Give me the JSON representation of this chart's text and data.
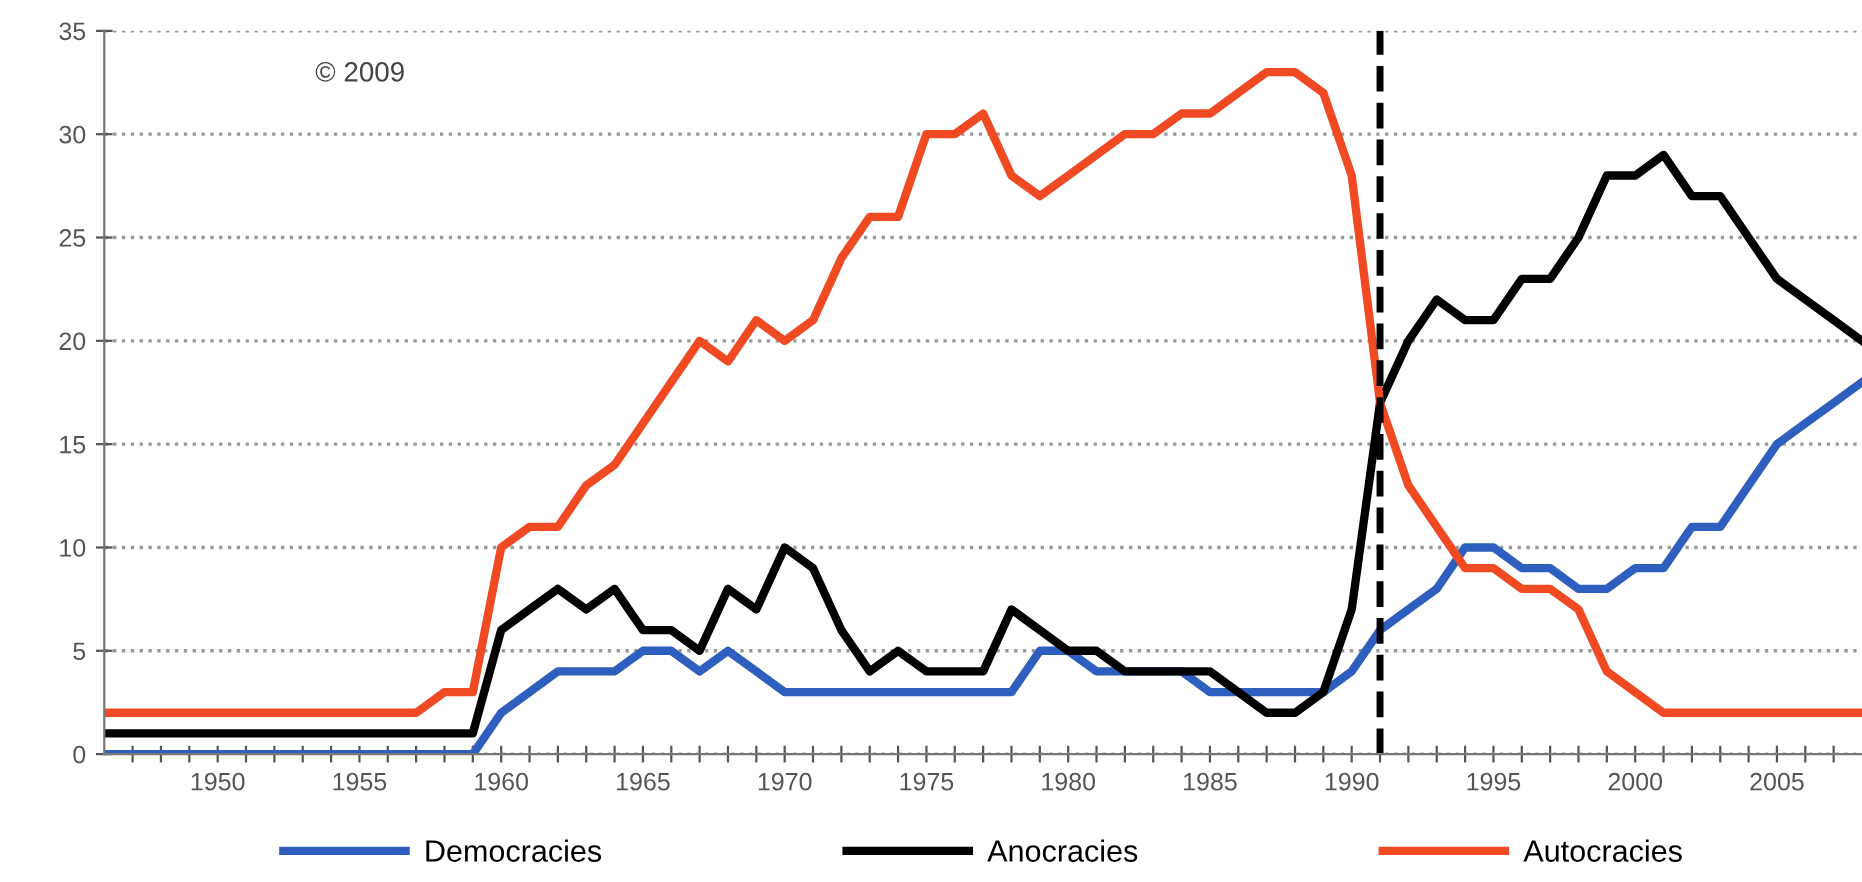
{
  "chart_data": {
    "type": "line",
    "x": [
      1946,
      1947,
      1948,
      1949,
      1950,
      1951,
      1952,
      1953,
      1954,
      1955,
      1956,
      1957,
      1958,
      1959,
      1960,
      1961,
      1962,
      1963,
      1964,
      1965,
      1966,
      1967,
      1968,
      1969,
      1970,
      1971,
      1972,
      1973,
      1974,
      1975,
      1976,
      1977,
      1978,
      1979,
      1980,
      1981,
      1982,
      1983,
      1984,
      1985,
      1986,
      1987,
      1988,
      1989,
      1990,
      1991,
      1992,
      1993,
      1994,
      1995,
      1996,
      1997,
      1998,
      1999,
      2000,
      2001,
      2002,
      2003,
      2004,
      2005,
      2006,
      2007,
      2008
    ],
    "series": [
      {
        "name": "Democracies",
        "color": "#2e5fbf",
        "values": [
          0,
          0,
          0,
          0,
          0,
          0,
          0,
          0,
          0,
          0,
          0,
          0,
          0,
          0,
          2,
          3,
          4,
          4,
          4,
          5,
          5,
          4,
          5,
          4,
          3,
          3,
          3,
          3,
          3,
          3,
          3,
          3,
          3,
          5,
          5,
          4,
          4,
          4,
          4,
          3,
          3,
          3,
          3,
          3,
          4,
          6,
          7,
          8,
          10,
          10,
          9,
          9,
          8,
          8,
          9,
          9,
          11,
          11,
          13,
          15,
          16,
          17,
          18
        ]
      },
      {
        "name": "Anocracies",
        "color": "#000000",
        "values": [
          1,
          1,
          1,
          1,
          1,
          1,
          1,
          1,
          1,
          1,
          1,
          1,
          1,
          1,
          6,
          7,
          8,
          7,
          8,
          6,
          6,
          5,
          8,
          7,
          10,
          9,
          6,
          4,
          5,
          4,
          4,
          4,
          7,
          6,
          5,
          5,
          4,
          4,
          4,
          4,
          3,
          2,
          2,
          3,
          7,
          17,
          20,
          22,
          21,
          21,
          23,
          23,
          25,
          28,
          28,
          29,
          27,
          27,
          25,
          23,
          22,
          21,
          20
        ]
      },
      {
        "name": "Autocracies",
        "color": "#f04a23",
        "values": [
          2,
          2,
          2,
          2,
          2,
          2,
          2,
          2,
          2,
          2,
          2,
          2,
          3,
          3,
          10,
          11,
          11,
          13,
          14,
          16,
          18,
          20,
          19,
          21,
          20,
          21,
          24,
          26,
          26,
          30,
          30,
          31,
          28,
          27,
          28,
          29,
          30,
          30,
          31,
          31,
          32,
          33,
          33,
          32,
          28,
          17,
          13,
          11,
          9,
          9,
          8,
          8,
          7,
          4,
          3,
          2,
          2,
          2,
          2,
          2,
          2,
          2,
          2
        ]
      }
    ],
    "xlim": [
      1946,
      2008
    ],
    "xticks": [
      {
        "value": 1947,
        "label": null
      },
      {
        "value": 1948,
        "label": null
      },
      {
        "value": 1949,
        "label": null
      },
      1950,
      {
        "value": 1951,
        "label": null
      },
      {
        "value": 1952,
        "label": null
      },
      {
        "value": 1953,
        "label": null
      },
      {
        "value": 1954,
        "label": null
      },
      1955,
      {
        "value": 1956,
        "label": null
      },
      {
        "value": 1957,
        "label": null
      },
      {
        "value": 1958,
        "label": null
      },
      {
        "value": 1959,
        "label": null
      },
      1960,
      {
        "value": 1961,
        "label": null
      },
      {
        "value": 1962,
        "label": null
      },
      {
        "value": 1963,
        "label": null
      },
      {
        "value": 1964,
        "label": null
      },
      1965,
      {
        "value": 1966,
        "label": null
      },
      {
        "value": 1967,
        "label": null
      },
      {
        "value": 1968,
        "label": null
      },
      {
        "value": 1969,
        "label": null
      },
      1970,
      {
        "value": 1971,
        "label": null
      },
      {
        "value": 1972,
        "label": null
      },
      {
        "value": 1973,
        "label": null
      },
      {
        "value": 1974,
        "label": null
      },
      1975,
      {
        "value": 1976,
        "label": null
      },
      {
        "value": 1977,
        "label": null
      },
      {
        "value": 1978,
        "label": null
      },
      {
        "value": 1979,
        "label": null
      },
      1980,
      {
        "value": 1981,
        "label": null
      },
      {
        "value": 1982,
        "label": null
      },
      {
        "value": 1983,
        "label": null
      },
      {
        "value": 1984,
        "label": null
      },
      1985,
      {
        "value": 1986,
        "label": null
      },
      {
        "value": 1987,
        "label": null
      },
      {
        "value": 1988,
        "label": null
      },
      {
        "value": 1989,
        "label": null
      },
      1990,
      {
        "value": 1991,
        "label": null
      },
      {
        "value": 1992,
        "label": null
      },
      {
        "value": 1993,
        "label": null
      },
      {
        "value": 1994,
        "label": null
      },
      1995,
      {
        "value": 1996,
        "label": null
      },
      {
        "value": 1997,
        "label": null
      },
      {
        "value": 1998,
        "label": null
      },
      {
        "value": 1999,
        "label": null
      },
      2000,
      {
        "value": 2001,
        "label": null
      },
      {
        "value": 2002,
        "label": null
      },
      {
        "value": 2003,
        "label": null
      },
      {
        "value": 2004,
        "label": null
      },
      2005,
      {
        "value": 2006,
        "label": null
      },
      {
        "value": 2007,
        "label": null
      }
    ],
    "ylim": [
      0,
      35
    ],
    "yticks": [
      0,
      5,
      10,
      15,
      20,
      25,
      30,
      35
    ],
    "grid": "y",
    "legend": "bottom",
    "marker": "none",
    "line_style": "solid",
    "ref_lines": [
      {
        "axis": "x",
        "value": 1991,
        "color": "#000000",
        "line_style": "dashed"
      }
    ],
    "annotations": [
      "© 2009"
    ]
  }
}
